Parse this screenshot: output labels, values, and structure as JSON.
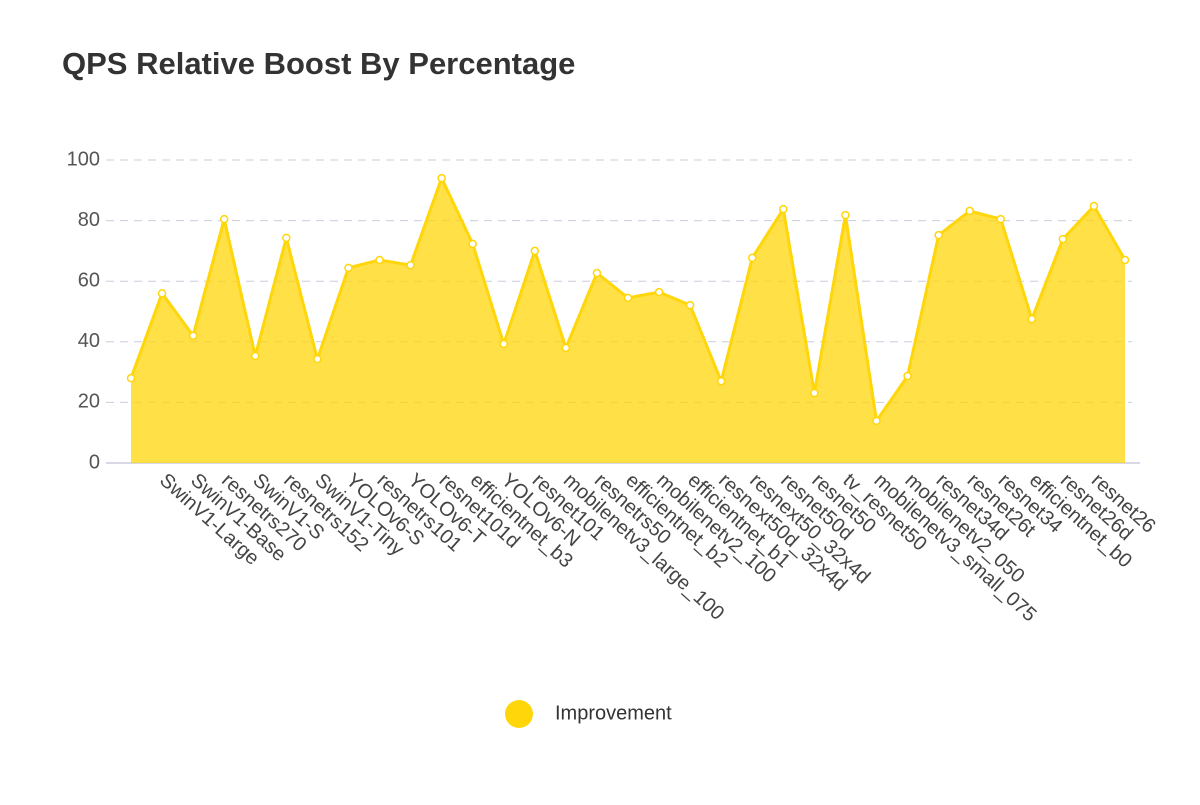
{
  "chart_data": {
    "type": "area",
    "title": "QPS Relative Boost By Percentage",
    "categories": [
      null,
      "SwinV1-Large",
      "SwinV1-Base",
      "resnetrs270",
      "SwinV1-S",
      "resnetrs152",
      "SwinV1-Tiny",
      "YOLOv6-S",
      "resnetrs101",
      "YOLOv6-T",
      "resnet101d",
      "efficientnet_b3",
      "YOLOv6-N",
      "resnet101",
      "mobilenetv3_large_100",
      "resnetrs50",
      "efficientnet_b2",
      "mobilenetv2_100",
      "efficientnet_b1",
      "resnext50d_32x4d",
      "resnext50_32x4d",
      "resnet50d",
      "resnet50",
      "tv_resnet50",
      "mobilenetv3_small_075",
      "mobilenetv2_050",
      "resnet34d",
      "resnet26t",
      "resnet34",
      "efficientnet_b0",
      "resnet26d",
      "resnet26",
      null
    ],
    "series": [
      {
        "name": "Improvement",
        "color": "#ffd60a",
        "values": [
          28,
          56,
          42,
          80.5,
          35.3,
          74.3,
          34.3,
          64.4,
          67,
          65.3,
          94,
          72.3,
          39.3,
          70,
          38,
          62.7,
          54.5,
          56.4,
          52.1,
          27,
          67.7,
          83.8,
          23.1,
          81.8,
          13.9,
          28.7,
          75.2,
          83.2,
          80.5,
          47.5,
          73.9,
          84.8,
          67
        ]
      }
    ],
    "ylim": [
      0,
      100
    ],
    "yticks": [
      0,
      20,
      40,
      60,
      80,
      100
    ],
    "grid": true,
    "legend": "bottom"
  }
}
